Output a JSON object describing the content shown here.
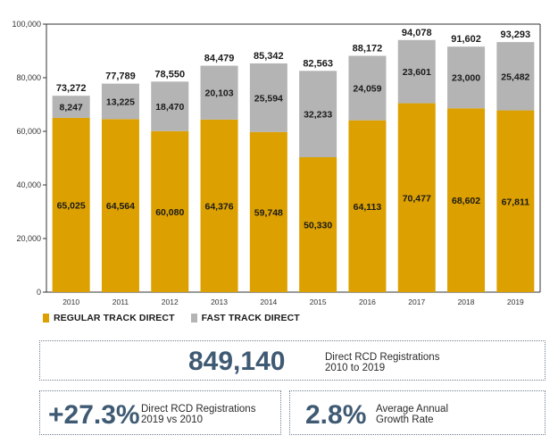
{
  "chart_data": {
    "type": "bar",
    "stacked": true,
    "categories": [
      "2010",
      "2011",
      "2012",
      "2013",
      "2014",
      "2015",
      "2016",
      "2017",
      "2018",
      "2019"
    ],
    "series": [
      {
        "name": "REGULAR TRACK DIRECT",
        "color": "#dca000",
        "values": [
          65025,
          64564,
          60080,
          64376,
          59748,
          50330,
          64113,
          70477,
          68602,
          67811
        ],
        "labels": [
          "65,025",
          "64,564",
          "60,080",
          "64,376",
          "59,748",
          "50,330",
          "64,113",
          "70,477",
          "68,602",
          "67,811"
        ]
      },
      {
        "name": "FAST TRACK DIRECT",
        "color": "#b4b4b4",
        "values": [
          8247,
          13225,
          18470,
          20103,
          25594,
          32233,
          24059,
          23601,
          23000,
          25482
        ],
        "labels": [
          "8,247",
          "13,225",
          "18,470",
          "20,103",
          "25,594",
          "32,233",
          "24,059",
          "23,601",
          "23,000",
          "25,482"
        ]
      }
    ],
    "totals": [
      73272,
      77789,
      78550,
      84479,
      85342,
      82563,
      88172,
      94078,
      91602,
      93293
    ],
    "total_labels": [
      "73,272",
      "77,789",
      "78,550",
      "84,479",
      "85,342",
      "82,563",
      "88,172",
      "94,078",
      "91,602",
      "93,293"
    ],
    "ylim": [
      0,
      100000
    ],
    "yticks": [
      0,
      20000,
      40000,
      60000,
      80000,
      100000
    ],
    "ytick_labels": [
      "0",
      "20,000",
      "40,000",
      "60,000",
      "80,000",
      "100,000"
    ],
    "grid": false,
    "legend_position": "bottom-left"
  },
  "stats": {
    "total": {
      "value": "849,140",
      "line1": "Direct RCD Registrations",
      "line2": "2010 to 2019"
    },
    "growth": {
      "value": "+27.3%",
      "line1": "Direct RCD Registrations",
      "line2": "2019 vs 2010"
    },
    "rate": {
      "value": "2.8%",
      "line1": "Average Annual",
      "line2": "Growth Rate"
    }
  }
}
